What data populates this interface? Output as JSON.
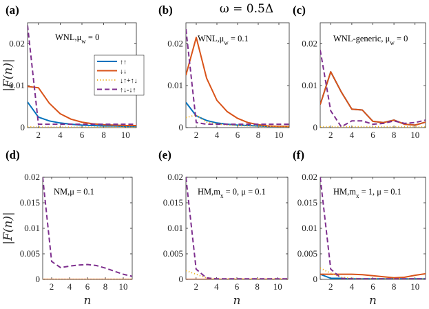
{
  "figure_title": "ω = 0.5Δ",
  "colors": {
    "upup": "#0072BD",
    "downdown": "#D95319",
    "mixed_sum": "#EDB120",
    "mixed_diff": "#7E2F8E"
  },
  "legend_labels": [
    "↑↑",
    "↓↓",
    "↓↑+↑↓",
    "↑↓-↓↑"
  ],
  "chart_data": [
    {
      "type": "line",
      "panel": "(a)",
      "annotation": "WNL,μ_w = 0",
      "xlabel": "",
      "ylabel": "|F(n)|",
      "xlim": [
        1,
        11
      ],
      "ylim": [
        0,
        0.025
      ],
      "xticks": [
        2,
        4,
        6,
        8,
        10
      ],
      "yticks": [
        0,
        0.01,
        0.02
      ],
      "ytick_labels": [
        "0",
        "0.01",
        "0.02"
      ],
      "legend": "inside-center",
      "x": [
        1,
        2,
        3,
        4,
        5,
        6,
        7,
        8,
        9,
        10,
        11
      ],
      "series": [
        {
          "name": "↑↑",
          "key": "upup",
          "style": "solid",
          "values": [
            0.0061,
            0.0025,
            0.0016,
            0.0011,
            0.0008,
            0.0006,
            0.0005,
            0.0004,
            0.0004,
            0.0003,
            0.0003
          ]
        },
        {
          "name": "↓↓",
          "key": "downdown",
          "style": "solid",
          "values": [
            0.0098,
            0.0095,
            0.0058,
            0.0033,
            0.002,
            0.0013,
            0.0009,
            0.0007,
            0.0006,
            0.0005,
            0.0005
          ]
        },
        {
          "name": "↓↑+↑↓",
          "key": "mixed_sum",
          "style": "dotted",
          "values": [
            0.0002,
            0.0001,
            0.0001,
            0.0001,
            0.0001,
            0.0001,
            0.0001,
            0.0001,
            0.0001,
            0.0001,
            0.0001
          ]
        },
        {
          "name": "↑↓-↓↑",
          "key": "mixed_diff",
          "style": "dashed",
          "values": [
            0.0244,
            0.0008,
            0.0008,
            0.0008,
            0.0008,
            0.0008,
            0.0008,
            0.0008,
            0.0008,
            0.0008,
            0.0008
          ]
        }
      ]
    },
    {
      "type": "line",
      "panel": "(b)",
      "annotation": "WNL,μ_w = 0.1",
      "xlabel": "",
      "ylabel": "",
      "xlim": [
        1,
        11
      ],
      "ylim": [
        0,
        0.025
      ],
      "xticks": [
        2,
        4,
        6,
        8,
        10
      ],
      "yticks": [
        0,
        0.01,
        0.02
      ],
      "ytick_labels": [
        "0",
        "0.01",
        "0.02"
      ],
      "x": [
        1,
        2,
        3,
        4,
        5,
        6,
        7,
        8,
        9,
        10,
        11
      ],
      "series": [
        {
          "key": "upup",
          "style": "solid",
          "values": [
            0.006,
            0.0028,
            0.0017,
            0.0011,
            0.0008,
            0.0006,
            0.0005,
            0.0004,
            0.0003,
            0.0003,
            0.0003
          ]
        },
        {
          "key": "downdown",
          "style": "solid",
          "values": [
            0.0125,
            0.0215,
            0.0118,
            0.0065,
            0.0038,
            0.0022,
            0.0012,
            0.0007,
            0.0004,
            0.0003,
            0.0003
          ]
        },
        {
          "key": "mixed_sum",
          "style": "dotted",
          "values": [
            0.0024,
            0.003,
            0.0013,
            0.0009,
            0.0006,
            0.0005,
            0.0004,
            0.0003,
            0.0003,
            0.0002,
            0.0002
          ]
        },
        {
          "key": "mixed_diff",
          "style": "dashed",
          "values": [
            0.0235,
            0.0012,
            0.0008,
            0.0008,
            0.0008,
            0.0008,
            0.0008,
            0.0008,
            0.0008,
            0.0008,
            0.0008
          ]
        }
      ]
    },
    {
      "type": "line",
      "panel": "(c)",
      "annotation": "WNL-generic, μ_w = 0",
      "xlabel": "",
      "ylabel": "",
      "xlim": [
        1,
        11
      ],
      "ylim": [
        0,
        0.025
      ],
      "xticks": [
        2,
        4,
        6,
        8,
        10
      ],
      "yticks": [
        0,
        0.01,
        0.02
      ],
      "ytick_labels": [
        "0",
        "0.01",
        "0.02"
      ],
      "x": [
        1,
        2,
        3,
        4,
        5,
        6,
        7,
        8,
        9,
        10,
        11
      ],
      "series": [
        {
          "key": "upup",
          "style": "solid",
          "values": [
            0.0055,
            0.0133,
            0.0085,
            0.0044,
            0.0042,
            0.0015,
            0.0012,
            0.0018,
            0.0008,
            0.0006,
            0.0013
          ]
        },
        {
          "key": "downdown",
          "style": "solid",
          "values": [
            0.0055,
            0.0133,
            0.0085,
            0.0044,
            0.0042,
            0.0015,
            0.0012,
            0.0018,
            0.0008,
            0.0006,
            0.0013
          ]
        },
        {
          "key": "mixed_sum",
          "style": "dotted",
          "values": [
            0.0002,
            0.0002,
            0.0002,
            0.0002,
            0.0002,
            0.0002,
            0.0002,
            0.0002,
            0.0002,
            0.0002,
            0.0002
          ]
        },
        {
          "key": "mixed_diff",
          "style": "dashed",
          "values": [
            0.0185,
            0.004,
            0.0002,
            0.0016,
            0.0016,
            0.0008,
            0.001,
            0.0016,
            0.001,
            0.0012,
            0.0018
          ]
        }
      ]
    },
    {
      "type": "line",
      "panel": "(d)",
      "annotation": "NM,μ = 0.1",
      "xlabel": "n",
      "ylabel": "|F(n)|",
      "xlim": [
        1,
        11
      ],
      "ylim": [
        0,
        0.02
      ],
      "xticks": [
        2,
        4,
        6,
        8,
        10
      ],
      "yticks": [
        0,
        0.005,
        0.01,
        0.015,
        0.02
      ],
      "ytick_labels": [
        "0",
        "0.005",
        "0.01",
        "0.015",
        "0.02"
      ],
      "x": [
        1,
        2,
        3,
        4,
        5,
        6,
        7,
        8,
        9,
        10,
        11
      ],
      "series": [
        {
          "key": "upup",
          "style": "solid",
          "values": [
            0,
            0,
            0,
            0,
            0,
            0,
            0,
            0,
            0,
            0,
            0
          ]
        },
        {
          "key": "downdown",
          "style": "solid",
          "values": [
            0,
            0,
            0,
            0,
            0,
            0,
            0,
            0,
            0,
            0,
            0
          ]
        },
        {
          "key": "mixed_sum",
          "style": "dotted",
          "values": [
            0,
            0,
            0,
            0,
            0,
            0,
            0,
            0,
            0,
            0,
            0
          ]
        },
        {
          "key": "mixed_diff",
          "style": "dashed",
          "values": [
            0.02,
            0.0035,
            0.0023,
            0.0026,
            0.0028,
            0.0029,
            0.0027,
            0.0022,
            0.0016,
            0.001,
            0.0006
          ]
        }
      ]
    },
    {
      "type": "line",
      "panel": "(e)",
      "annotation": "HM,m_x = 0, μ = 0.1",
      "xlabel": "n",
      "ylabel": "",
      "xlim": [
        1,
        11
      ],
      "ylim": [
        0,
        0.02
      ],
      "xticks": [
        2,
        4,
        6,
        8,
        10
      ],
      "yticks": [
        0,
        0.005,
        0.01,
        0.015,
        0.02
      ],
      "ytick_labels": [
        "0",
        "0.005",
        "0.01",
        "0.015",
        "0.02"
      ],
      "x": [
        1,
        2,
        3,
        4,
        5,
        6,
        7,
        8,
        9,
        10,
        11
      ],
      "series": [
        {
          "key": "upup",
          "style": "solid",
          "values": [
            0,
            0,
            0,
            0,
            0,
            0,
            0,
            0,
            0,
            0,
            0
          ]
        },
        {
          "key": "downdown",
          "style": "solid",
          "values": [
            0,
            0,
            0,
            0,
            0,
            0,
            0,
            0,
            0,
            0,
            0
          ]
        },
        {
          "key": "mixed_sum",
          "style": "dotted",
          "values": [
            0.0017,
            0.001,
            0.0003,
            0.0001,
            0.0001,
            0.0001,
            0.0001,
            0.0001,
            0.0001,
            0.0001,
            0.0001
          ]
        },
        {
          "key": "mixed_diff",
          "style": "dashed",
          "values": [
            0.02,
            0.002,
            0.0003,
            0.0001,
            0.0001,
            0.0001,
            0.0001,
            0.0001,
            0.0001,
            0.0001,
            0.0001
          ]
        }
      ]
    },
    {
      "type": "line",
      "panel": "(f)",
      "annotation": "HM,m_x = 1, μ = 0.1",
      "xlabel": "n",
      "ylabel": "",
      "xlim": [
        1,
        11
      ],
      "ylim": [
        0,
        0.02
      ],
      "xticks": [
        2,
        4,
        6,
        8,
        10
      ],
      "yticks": [
        0,
        0.005,
        0.01,
        0.015,
        0.02
      ],
      "ytick_labels": [
        "0",
        "0.005",
        "0.01",
        "0.015",
        "0.02"
      ],
      "x": [
        1,
        2,
        3,
        4,
        5,
        6,
        7,
        8,
        9,
        10,
        11
      ],
      "series": [
        {
          "key": "upup",
          "style": "solid",
          "values": [
            0.001,
            0.0002,
            0.0002,
            0.0001,
            0.0001,
            0.0001,
            0.0001,
            0.0001,
            0.0001,
            0.0001,
            0.0001
          ]
        },
        {
          "key": "downdown",
          "style": "solid",
          "values": [
            0.001,
            0.001,
            0.001,
            0.001,
            0.0009,
            0.0007,
            0.0005,
            0.0003,
            0.0004,
            0.0008,
            0.0011
          ]
        },
        {
          "key": "mixed_sum",
          "style": "dotted",
          "values": [
            0.0022,
            0.0012,
            0.0004,
            0.0002,
            0.0001,
            0.0001,
            0.0001,
            0.0001,
            0.0001,
            0.0001,
            0.0001
          ]
        },
        {
          "key": "mixed_diff",
          "style": "dashed",
          "values": [
            0.02,
            0.002,
            0.0002,
            0.0001,
            0.0001,
            0.0001,
            0.0001,
            0.0001,
            0.0001,
            0.0001,
            0.0001
          ]
        }
      ]
    }
  ]
}
